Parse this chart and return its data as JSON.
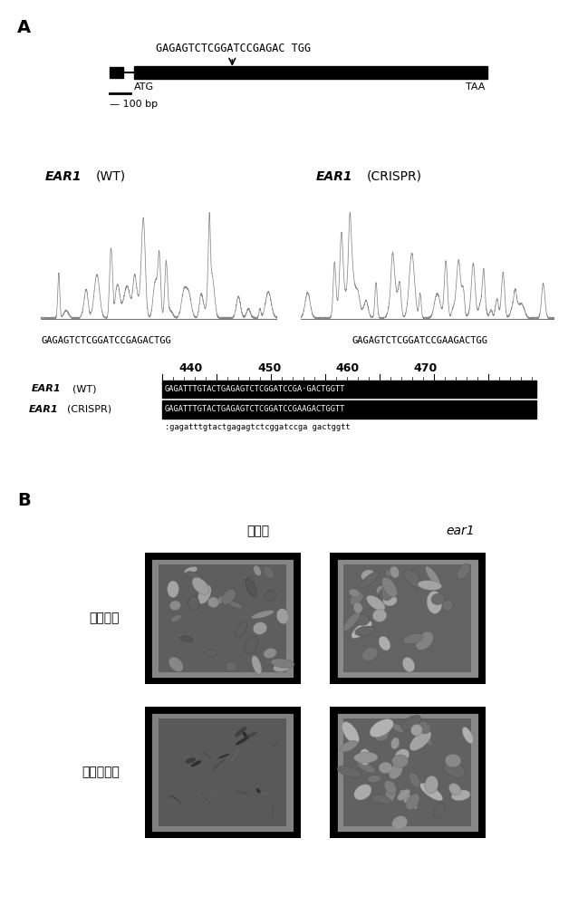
{
  "panel_A_label": "A",
  "panel_B_label": "B",
  "gene_sequence_text": "GAGAGTCTCGGATCCGAGAC TGG",
  "gene_atg": "ATG",
  "gene_taa": "TAA",
  "scale_bar_text": "— 100 bp",
  "wt_label_italic": "EAR1",
  "wt_label_normal": "(WT)",
  "crispr_label_italic": "EAR1",
  "crispr_label_normal": "(CRISPR)",
  "wt_seq_text": "GAGAGTCTCGGATCCGAGACTGG",
  "crispr_seq_text": "GAGAGTCTCGGATCCGAAGACTGG",
  "ruler_numbers": [
    "440",
    "450",
    "460",
    "470"
  ],
  "align_wt_seq": "GAGATTTGTACTGAGAGTCTCGGATCCGA·GACTGGTT",
  "align_crispr_seq": "GAGATTTGTACTGAGAGTCTCGGATCCGAAGACTGGTT",
  "align_lower_seq": ":gagatttgtactgagagtctcggatccga gactggtt",
  "B_top_left": "野生型",
  "B_top_right": "ear1",
  "B_left1": "干旱处理",
  "B_left2": "干旱后复水",
  "bg_color": "#ffffff"
}
